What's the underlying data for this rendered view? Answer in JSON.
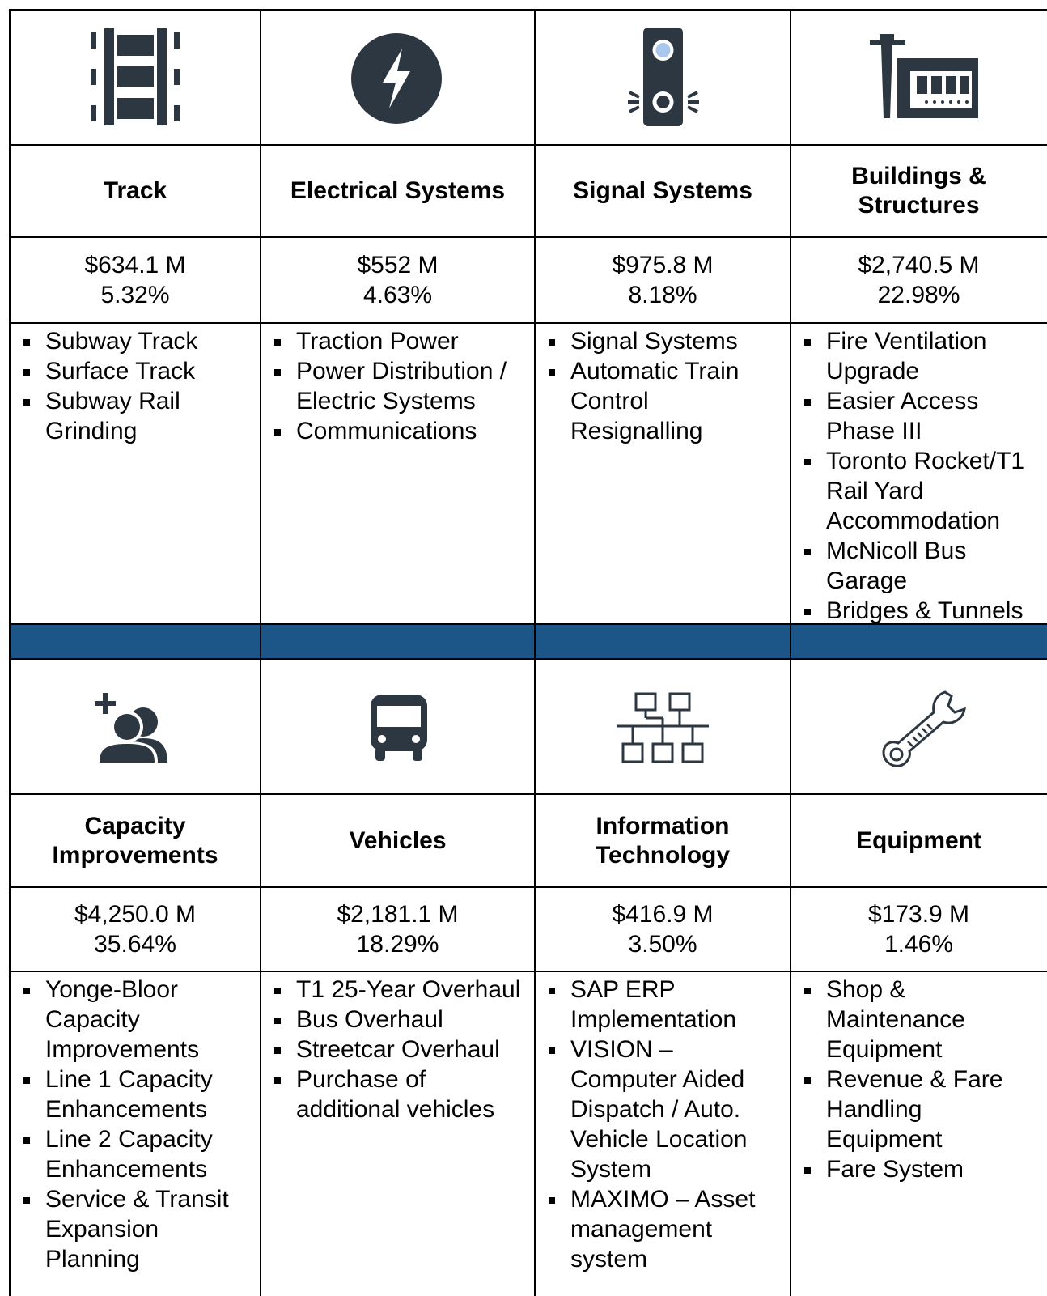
{
  "rows": [
    {
      "cells": [
        {
          "title": "Track",
          "amount": "$634.1 M",
          "percent": "5.32%",
          "items": [
            "Subway Track",
            "Surface Track",
            "Subway Rail Grinding"
          ]
        },
        {
          "title": "Electrical Systems",
          "amount": "$552 M",
          "percent": "4.63%",
          "items": [
            "Traction Power",
            "Power Distribution / Electric Systems",
            "Communications"
          ]
        },
        {
          "title": "Signal Systems",
          "amount": "$975.8 M",
          "percent": "8.18%",
          "items": [
            "Signal Systems",
            "Automatic Train Control Resignalling"
          ]
        },
        {
          "title": "Buildings & Structures",
          "amount": "$2,740.5 M",
          "percent": "22.98%",
          "items": [
            "Fire Ventilation Upgrade",
            "Easier Access Phase III",
            "Toronto Rocket/T1 Rail Yard Accommodation",
            "McNicoll Bus Garage",
            "Bridges & Tunnels"
          ]
        }
      ]
    },
    {
      "cells": [
        {
          "title": "Capacity Improvements",
          "amount": "$4,250.0 M",
          "percent": "35.64%",
          "items": [
            "Yonge-Bloor Capacity Improvements",
            "Line 1 Capacity Enhancements",
            "Line 2 Capacity Enhancements",
            "Service & Transit Expansion Planning"
          ]
        },
        {
          "title": "Vehicles",
          "amount": "$2,181.1 M",
          "percent": "18.29%",
          "items": [
            "T1 25-Year Overhaul",
            "Bus Overhaul",
            "Streetcar Overhaul",
            "Purchase of additional vehicles"
          ]
        },
        {
          "title": "Information Technology",
          "amount": "$416.9 M",
          "percent": "3.50%",
          "items": [
            "SAP ERP Implementation",
            "VISION – Computer Aided Dispatch / Auto. Vehicle Location System",
            "MAXIMO – Asset management system"
          ]
        },
        {
          "title": "Equipment",
          "amount": "$173.9 M",
          "percent": "1.46%",
          "items": [
            "Shop & Maintenance Equipment",
            "Revenue & Fare Handling Equipment",
            "Fare System"
          ]
        }
      ]
    }
  ]
}
